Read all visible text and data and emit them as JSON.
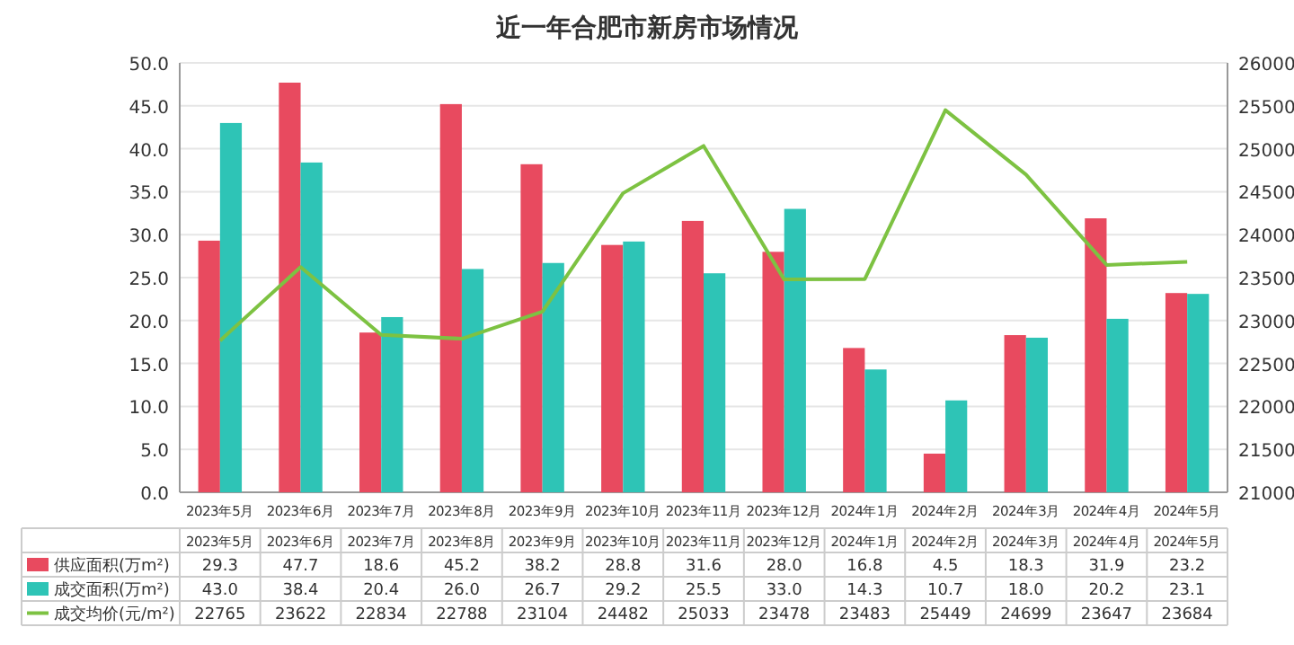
{
  "chart_data": {
    "type": "bar",
    "title": "近一年合肥市新房市场情况",
    "categories": [
      "2023年5月",
      "2023年6月",
      "2023年7月",
      "2023年8月",
      "2023年9月",
      "2023年10月",
      "2023年11月",
      "2023年12月",
      "2024年1月",
      "2024年2月",
      "2024年3月",
      "2024年4月",
      "2024年5月"
    ],
    "series": [
      {
        "name": "供应面积(万m²)",
        "color": "#e84a5f",
        "values": [
          29.3,
          47.7,
          18.6,
          45.2,
          38.2,
          28.8,
          31.6,
          28.0,
          16.8,
          4.5,
          18.3,
          31.9,
          23.2
        ],
        "value_labels": [
          "29.3",
          "47.7",
          "18.6",
          "45.2",
          "38.2",
          "28.8",
          "31.6",
          "28.0",
          "16.8",
          "4.5",
          "18.3",
          "31.9",
          "23.2"
        ]
      },
      {
        "name": "成交面积(万m²)",
        "color": "#2ec4b6",
        "values": [
          43.0,
          38.4,
          20.4,
          26.0,
          26.7,
          29.2,
          25.5,
          33.0,
          14.3,
          10.7,
          18.0,
          20.2,
          23.1
        ],
        "value_labels": [
          "43.0",
          "38.4",
          "20.4",
          "26.0",
          "26.7",
          "29.2",
          "25.5",
          "33.0",
          "14.3",
          "10.7",
          "18.0",
          "20.2",
          "23.1"
        ]
      },
      {
        "name": "成交均价(元/m²)",
        "color": "#7dc242",
        "type": "line",
        "axis": "y2",
        "values": [
          22765,
          23622,
          22834,
          22788,
          23104,
          24482,
          25033,
          23478,
          23483,
          25449,
          24699,
          23647,
          23684
        ],
        "value_labels": [
          "22765",
          "23622",
          "22834",
          "22788",
          "23104",
          "24482",
          "25033",
          "23478",
          "23483",
          "25449",
          "24699",
          "23647",
          "23684"
        ]
      }
    ],
    "ylim": [
      0,
      50
    ],
    "yticks": [
      {
        "value": 0,
        "label": "0.0"
      },
      {
        "value": 5,
        "label": "5.0"
      },
      {
        "value": 10,
        "label": "10.0"
      },
      {
        "value": 15,
        "label": "15.0"
      },
      {
        "value": 20,
        "label": "20.0"
      },
      {
        "value": 25,
        "label": "25.0"
      },
      {
        "value": 30,
        "label": "30.0"
      },
      {
        "value": 35,
        "label": "35.0"
      },
      {
        "value": 40,
        "label": "40.0"
      },
      {
        "value": 45,
        "label": "45.0"
      },
      {
        "value": 50,
        "label": "50.0"
      }
    ],
    "y2lim": [
      21000,
      26000
    ],
    "y2ticks": [
      21000,
      21500,
      22000,
      22500,
      23000,
      23500,
      24000,
      24500,
      25000,
      25500,
      26000
    ],
    "grid": "y",
    "legend": "bottom",
    "marker": "none",
    "line_style": "solid"
  }
}
